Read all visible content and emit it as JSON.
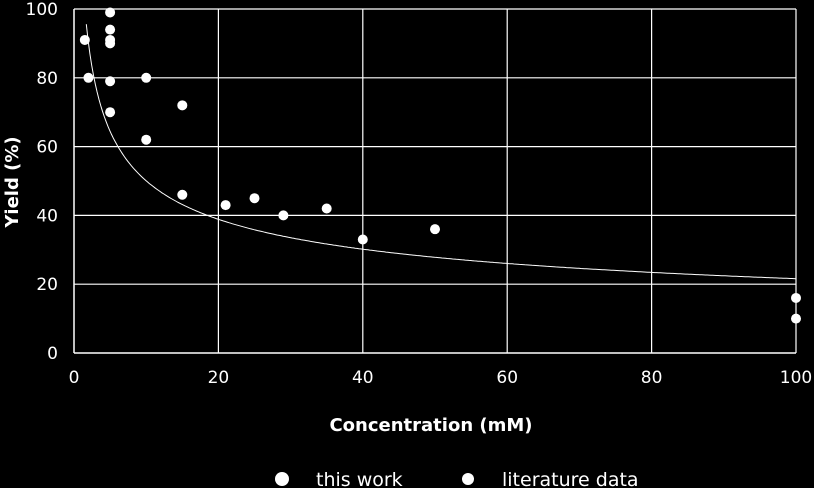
{
  "chart_data": {
    "type": "scatter",
    "xlabel": "Concentration (mM)",
    "ylabel": "Yield (%)",
    "xlim": [
      0,
      100
    ],
    "ylim": [
      0,
      100
    ],
    "xticks": [
      "0",
      "20",
      "40",
      "60",
      "80",
      "100"
    ],
    "yticks": [
      "0",
      "20",
      "40",
      "60",
      "80",
      "100"
    ],
    "grid": true,
    "legend_position": "bottom",
    "series": [
      {
        "name": "this work",
        "marker_size": "large",
        "color": "#ffffff",
        "points": []
      },
      {
        "name": "literature data",
        "marker_size": "small",
        "color": "#ffffff",
        "points": [
          {
            "x": 1.5,
            "y": 91
          },
          {
            "x": 2,
            "y": 80
          },
          {
            "x": 5,
            "y": 99
          },
          {
            "x": 5,
            "y": 94
          },
          {
            "x": 5,
            "y": 91
          },
          {
            "x": 5,
            "y": 90
          },
          {
            "x": 5,
            "y": 79
          },
          {
            "x": 5,
            "y": 70
          },
          {
            "x": 10,
            "y": 80
          },
          {
            "x": 10,
            "y": 62
          },
          {
            "x": 15,
            "y": 72
          },
          {
            "x": 15,
            "y": 46
          },
          {
            "x": 21,
            "y": 43
          },
          {
            "x": 25,
            "y": 45
          },
          {
            "x": 29,
            "y": 40
          },
          {
            "x": 35,
            "y": 42
          },
          {
            "x": 40,
            "y": 33
          },
          {
            "x": 50,
            "y": 36
          },
          {
            "x": 100,
            "y": 16
          },
          {
            "x": 100,
            "y": 10
          }
        ]
      }
    ],
    "trend_curve": {
      "type": "power",
      "points": [
        {
          "x": 3,
          "y": 80
        },
        {
          "x": 5,
          "y": 66
        },
        {
          "x": 10,
          "y": 52
        },
        {
          "x": 20,
          "y": 41
        },
        {
          "x": 30,
          "y": 35
        },
        {
          "x": 40,
          "y": 31
        },
        {
          "x": 60,
          "y": 26
        },
        {
          "x": 80,
          "y": 23.5
        },
        {
          "x": 100,
          "y": 21.5
        }
      ]
    }
  }
}
